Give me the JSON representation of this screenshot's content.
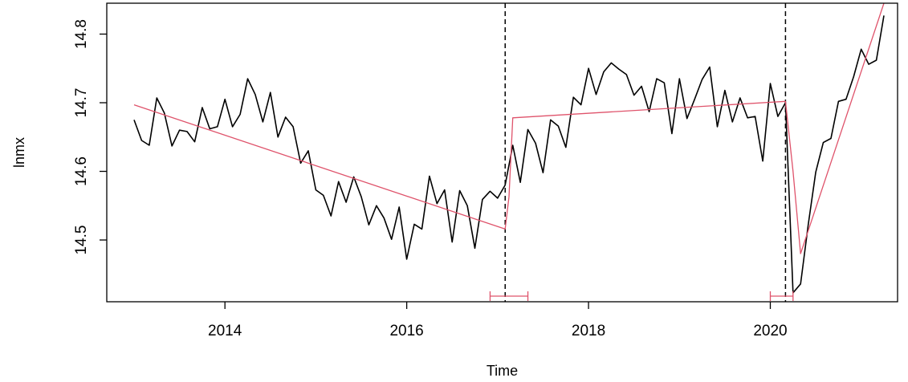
{
  "chart_data": {
    "type": "line",
    "xlabel": "Time",
    "ylabel": "lnmx",
    "xlim": [
      2012.7,
      2021.4
    ],
    "ylim": [
      14.41,
      14.845
    ],
    "x_ticks": [
      2014,
      2016,
      2018,
      2020
    ],
    "x_tick_labels": [
      "2014",
      "2016",
      "2018",
      "2020"
    ],
    "y_ticks": [
      14.5,
      14.6,
      14.7,
      14.8
    ],
    "y_tick_labels": [
      "14.5",
      "14.6",
      "14.7",
      "14.8"
    ],
    "grid": false,
    "colors": {
      "observed": "#000000",
      "fitted": "#DF536B",
      "breakpoint": "#000000"
    },
    "series": [
      {
        "values": [
          [
            2013.0,
            14.675
          ],
          [
            2013.083,
            14.645
          ],
          [
            2013.167,
            14.638
          ],
          [
            2013.25,
            14.707
          ],
          [
            2013.333,
            14.685
          ],
          [
            2013.417,
            14.637
          ],
          [
            2013.5,
            14.66
          ],
          [
            2013.583,
            14.658
          ],
          [
            2013.667,
            14.643
          ],
          [
            2013.75,
            14.693
          ],
          [
            2013.833,
            14.662
          ],
          [
            2013.917,
            14.665
          ],
          [
            2014.0,
            14.705
          ],
          [
            2014.083,
            14.665
          ],
          [
            2014.167,
            14.683
          ],
          [
            2014.25,
            14.735
          ],
          [
            2014.333,
            14.712
          ],
          [
            2014.417,
            14.672
          ],
          [
            2014.5,
            14.715
          ],
          [
            2014.583,
            14.65
          ],
          [
            2014.667,
            14.679
          ],
          [
            2014.75,
            14.665
          ],
          [
            2014.833,
            14.612
          ],
          [
            2014.917,
            14.63
          ],
          [
            2015.0,
            14.573
          ],
          [
            2015.083,
            14.565
          ],
          [
            2015.167,
            14.535
          ],
          [
            2015.25,
            14.585
          ],
          [
            2015.333,
            14.555
          ],
          [
            2015.417,
            14.592
          ],
          [
            2015.5,
            14.563
          ],
          [
            2015.583,
            14.522
          ],
          [
            2015.667,
            14.55
          ],
          [
            2015.75,
            14.532
          ],
          [
            2015.833,
            14.501
          ],
          [
            2015.917,
            14.548
          ],
          [
            2016.0,
            14.472
          ],
          [
            2016.083,
            14.523
          ],
          [
            2016.167,
            14.516
          ],
          [
            2016.25,
            14.593
          ],
          [
            2016.333,
            14.553
          ],
          [
            2016.417,
            14.573
          ],
          [
            2016.5,
            14.497
          ],
          [
            2016.583,
            14.572
          ],
          [
            2016.667,
            14.55
          ],
          [
            2016.75,
            14.488
          ],
          [
            2016.833,
            14.559
          ],
          [
            2016.917,
            14.571
          ],
          [
            2017.0,
            14.561
          ],
          [
            2017.083,
            14.58
          ],
          [
            2017.167,
            14.638
          ],
          [
            2017.25,
            14.584
          ],
          [
            2017.333,
            14.661
          ],
          [
            2017.417,
            14.641
          ],
          [
            2017.5,
            14.598
          ],
          [
            2017.583,
            14.675
          ],
          [
            2017.667,
            14.666
          ],
          [
            2017.75,
            14.635
          ],
          [
            2017.833,
            14.708
          ],
          [
            2017.917,
            14.697
          ],
          [
            2018.0,
            14.75
          ],
          [
            2018.083,
            14.712
          ],
          [
            2018.167,
            14.745
          ],
          [
            2018.25,
            14.758
          ],
          [
            2018.333,
            14.749
          ],
          [
            2018.417,
            14.741
          ],
          [
            2018.5,
            14.711
          ],
          [
            2018.583,
            14.724
          ],
          [
            2018.667,
            14.687
          ],
          [
            2018.75,
            14.735
          ],
          [
            2018.833,
            14.729
          ],
          [
            2018.917,
            14.655
          ],
          [
            2019.0,
            14.735
          ],
          [
            2019.083,
            14.677
          ],
          [
            2019.167,
            14.705
          ],
          [
            2019.25,
            14.734
          ],
          [
            2019.333,
            14.752
          ],
          [
            2019.417,
            14.665
          ],
          [
            2019.5,
            14.718
          ],
          [
            2019.583,
            14.672
          ],
          [
            2019.667,
            14.707
          ],
          [
            2019.75,
            14.678
          ],
          [
            2019.833,
            14.68
          ],
          [
            2019.917,
            14.615
          ],
          [
            2020.0,
            14.728
          ],
          [
            2020.083,
            14.68
          ],
          [
            2020.167,
            14.7
          ],
          [
            2020.25,
            14.423
          ],
          [
            2020.333,
            14.436
          ],
          [
            2020.417,
            14.522
          ],
          [
            2020.5,
            14.599
          ],
          [
            2020.583,
            14.642
          ],
          [
            2020.667,
            14.648
          ],
          [
            2020.75,
            14.702
          ],
          [
            2020.833,
            14.705
          ],
          [
            2020.917,
            14.738
          ],
          [
            2021.0,
            14.778
          ],
          [
            2021.083,
            14.756
          ],
          [
            2021.167,
            14.762
          ],
          [
            2021.25,
            14.827
          ]
        ]
      },
      {
        "values": [
          [
            2013.0,
            14.697
          ],
          [
            2017.083,
            14.516
          ],
          [
            2017.125,
            14.563
          ],
          [
            2017.167,
            14.678
          ],
          [
            2020.167,
            14.702
          ],
          [
            2020.25,
            14.6
          ],
          [
            2020.333,
            14.48
          ],
          [
            2021.25,
            14.845
          ]
        ]
      }
    ],
    "breakpoints": [
      2017.083,
      2020.167
    ],
    "confidence_intervals": [
      [
        2016.917,
        2017.333
      ],
      [
        2020.0,
        2020.25
      ]
    ]
  }
}
